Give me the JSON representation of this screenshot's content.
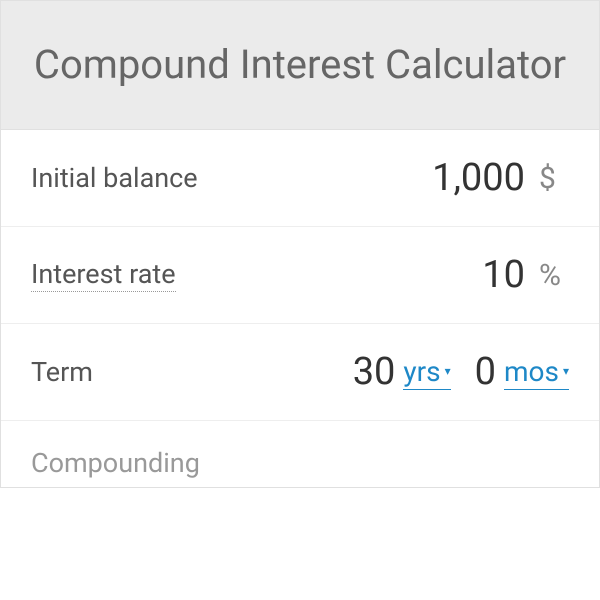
{
  "header": {
    "title": "Compound Interest Calculator"
  },
  "rows": {
    "initial_balance": {
      "label": "Initial balance",
      "value": "1,000",
      "unit": "$"
    },
    "interest_rate": {
      "label": "Interest rate",
      "value": "10",
      "unit": "%"
    },
    "term": {
      "label": "Term",
      "years_value": "30",
      "years_unit": "yrs",
      "months_value": "0",
      "months_unit": "mos"
    },
    "compounding": {
      "label": "Compounding"
    }
  },
  "colors": {
    "header_bg": "#ebebeb",
    "header_text": "#666666",
    "label_text": "#555555",
    "value_text": "#333333",
    "unit_text": "#888888",
    "link_color": "#1e88c7",
    "border": "#eeeeee"
  }
}
